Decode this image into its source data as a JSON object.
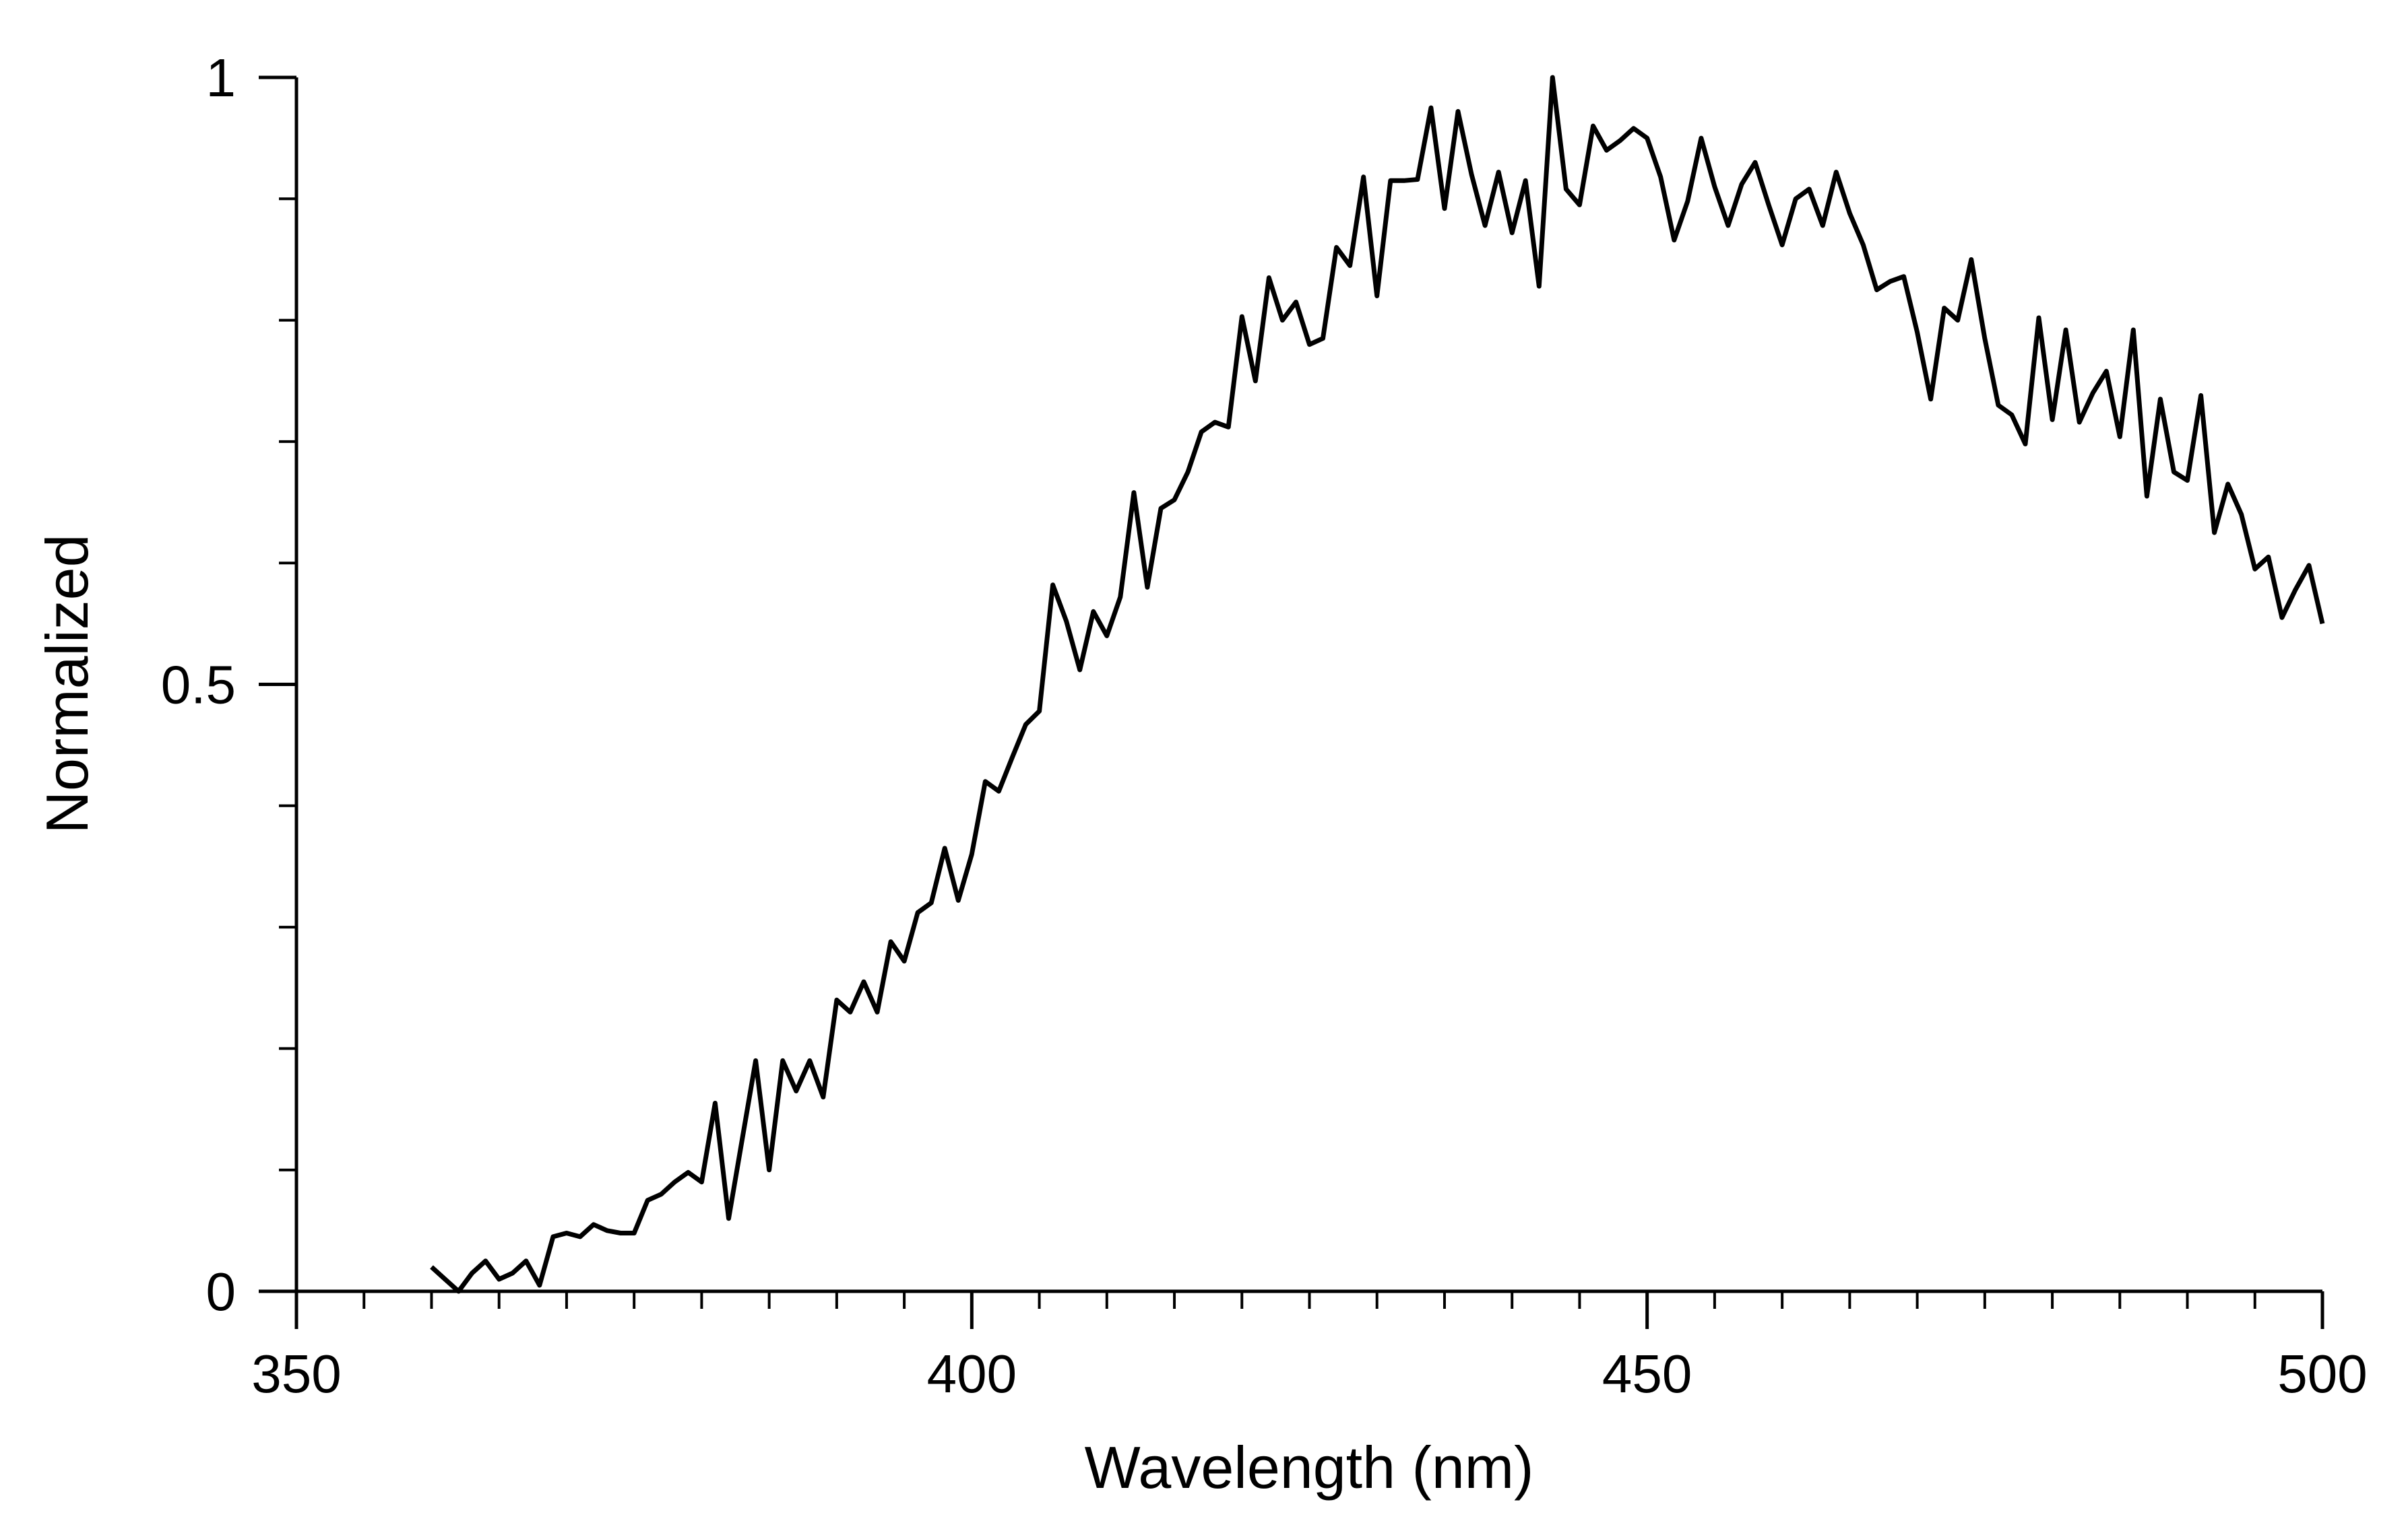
{
  "chart_data": {
    "type": "line",
    "title": "",
    "xlabel": "Wavelength (nm)",
    "ylabel": "Normalized",
    "xlim": [
      350,
      500
    ],
    "ylim": [
      0,
      1
    ],
    "x_ticks": [
      350,
      400,
      450,
      500
    ],
    "x_tick_labels": [
      "350",
      "400",
      "450",
      "500"
    ],
    "x_minor_step": 5,
    "y_ticks": [
      0,
      0.5,
      1
    ],
    "y_tick_labels": [
      "0",
      "0.5",
      "1"
    ],
    "y_minor_step": 0.1,
    "grid": false,
    "legend": "none",
    "line_color": "#000000",
    "series": [
      {
        "x": [
          360,
          361,
          362,
          363,
          364,
          365,
          366,
          367,
          368,
          369,
          370,
          371,
          372,
          373,
          374,
          375,
          376,
          377,
          378,
          379,
          380,
          381,
          382,
          383,
          384,
          385,
          386,
          387,
          388,
          389,
          390,
          391,
          392,
          393,
          394,
          395,
          396,
          397,
          398,
          399,
          400,
          401,
          402,
          403,
          404,
          405,
          406,
          407,
          408,
          409,
          410,
          411,
          412,
          413,
          414,
          415,
          416,
          417,
          418,
          419,
          420,
          421,
          422,
          423,
          424,
          425,
          426,
          427,
          428,
          429,
          430,
          431,
          432,
          433,
          434,
          435,
          436,
          437,
          438,
          439,
          440,
          441,
          442,
          443,
          444,
          445,
          446,
          447,
          448,
          449,
          450,
          451,
          452,
          453,
          454,
          455,
          456,
          457,
          458,
          459,
          460,
          461,
          462,
          463,
          464,
          465,
          466,
          467,
          468,
          469,
          470,
          471,
          472,
          473,
          474,
          475,
          476,
          477,
          478,
          479,
          480,
          481,
          482,
          483,
          484,
          485,
          486,
          487,
          488,
          489,
          490,
          491,
          492,
          493,
          494,
          495,
          496,
          497,
          498,
          499,
          500
        ],
        "y": [
          0.02,
          0.01,
          0.0,
          0.015,
          0.025,
          0.01,
          0.015,
          0.025,
          0.005,
          0.045,
          0.048,
          0.045,
          0.055,
          0.05,
          0.048,
          0.048,
          0.075,
          0.08,
          0.09,
          0.098,
          0.09,
          0.155,
          0.06,
          0.125,
          0.19,
          0.1,
          0.19,
          0.165,
          0.19,
          0.16,
          0.24,
          0.23,
          0.255,
          0.23,
          0.288,
          0.272,
          0.312,
          0.32,
          0.365,
          0.322,
          0.36,
          0.42,
          0.412,
          0.44,
          0.467,
          0.478,
          0.582,
          0.552,
          0.512,
          0.56,
          0.54,
          0.572,
          0.658,
          0.58,
          0.645,
          0.652,
          0.675,
          0.708,
          0.716,
          0.712,
          0.803,
          0.75,
          0.835,
          0.8,
          0.815,
          0.78,
          0.785,
          0.86,
          0.845,
          0.918,
          0.82,
          0.915,
          0.915,
          0.916,
          0.975,
          0.892,
          0.972,
          0.92,
          0.878,
          0.922,
          0.872,
          0.915,
          0.828,
          1.0,
          0.908,
          0.895,
          0.96,
          0.94,
          0.948,
          0.958,
          0.95,
          0.918,
          0.866,
          0.898,
          0.95,
          0.91,
          0.878,
          0.912,
          0.93,
          0.895,
          0.862,
          0.9,
          0.908,
          0.878,
          0.922,
          0.888,
          0.862,
          0.825,
          0.832,
          0.836,
          0.79,
          0.735,
          0.81,
          0.8,
          0.85,
          0.785,
          0.73,
          0.722,
          0.698,
          0.802,
          0.718,
          0.792,
          0.716,
          0.74,
          0.758,
          0.704,
          0.792,
          0.655,
          0.735,
          0.675,
          0.668,
          0.738,
          0.625,
          0.665,
          0.64,
          0.595,
          0.605,
          0.555,
          0.578,
          0.598,
          0.55
        ]
      }
    ]
  }
}
